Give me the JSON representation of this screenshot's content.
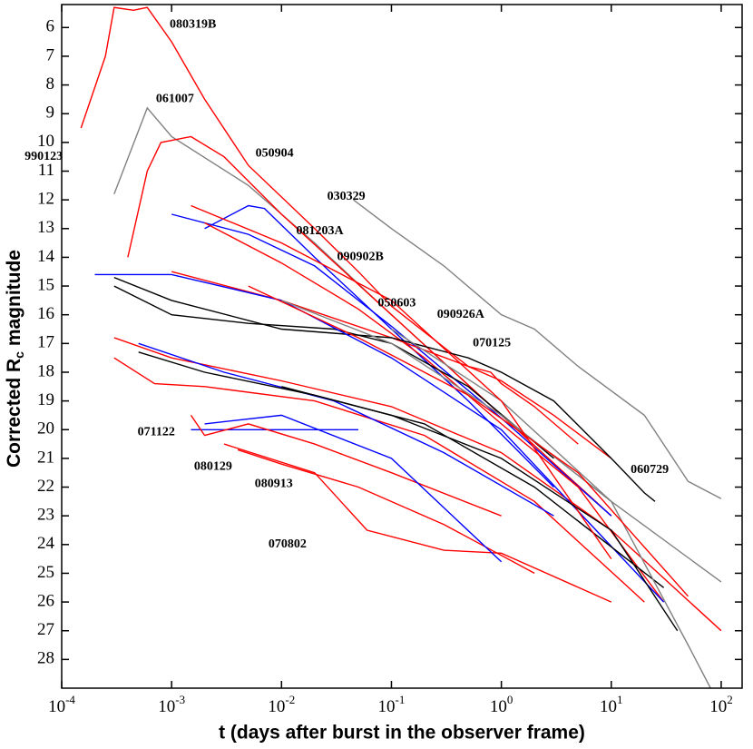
{
  "chart_data": {
    "type": "line",
    "xlabel": "t (days after burst in the observer frame)",
    "ylabel": [
      "Corrected R",
      "c",
      " magnitude"
    ],
    "xscale": "log",
    "y_inverted": true,
    "xlim": [
      0.0001,
      155
    ],
    "ylim": [
      5.2,
      29
    ],
    "xticks": [
      {
        "value": 0.0001,
        "label": "10",
        "exponent": "-4"
      },
      {
        "value": 0.001,
        "label": "10",
        "exponent": "-3"
      },
      {
        "value": 0.01,
        "label": "10",
        "exponent": "-2"
      },
      {
        "value": 0.1,
        "label": "10",
        "exponent": "-1"
      },
      {
        "value": 1,
        "label": "10",
        "exponent": "0"
      },
      {
        "value": 10,
        "label": "10",
        "exponent": "1"
      },
      {
        "value": 100,
        "label": "10",
        "exponent": "2"
      }
    ],
    "yticks": [
      6,
      7,
      8,
      9,
      10,
      11,
      12,
      13,
      14,
      15,
      16,
      17,
      18,
      19,
      20,
      21,
      22,
      23,
      24,
      25,
      26,
      27,
      28
    ],
    "series": [
      {
        "name": "080319B",
        "color": "#ff0000",
        "x": [
          0.00015,
          0.00025,
          0.0003,
          0.00045,
          0.0006,
          0.001,
          0.002,
          0.005,
          0.02,
          0.05,
          0.1,
          0.5
        ],
        "values": [
          9.5,
          7,
          5.3,
          5.4,
          5.3,
          6.5,
          8.5,
          10.8,
          13,
          14.5,
          15.7,
          17.8
        ]
      },
      {
        "name": "990123",
        "color": "#808080",
        "x": [
          0.0003,
          0.0006,
          0.001,
          0.005,
          0.02,
          0.1,
          1,
          10
        ],
        "values": [
          11.8,
          8.8,
          9.8,
          11.5,
          13.5,
          16,
          19.5,
          22.5
        ]
      },
      {
        "name": "061007",
        "color": "#ff0000",
        "x": [
          0.0004,
          0.0006,
          0.0008,
          0.0015,
          0.003,
          0.01,
          0.1,
          1,
          10
        ],
        "values": [
          14,
          11,
          10,
          9.8,
          10.5,
          12.5,
          16,
          19.5,
          23
        ]
      },
      {
        "name": "050904",
        "color": "#0000ff",
        "x": [
          0.002,
          0.005,
          0.007,
          0.02,
          0.1,
          0.5,
          3
        ],
        "values": [
          13,
          12.2,
          12.3,
          14,
          16.5,
          19,
          22
        ]
      },
      {
        "name": "030329",
        "color": "#808080",
        "x": [
          0.045,
          0.1,
          0.3,
          1,
          2,
          5,
          20,
          50,
          100
        ],
        "values": [
          12,
          13,
          14.3,
          16,
          16.5,
          17.8,
          19.5,
          21.8,
          22.4
        ]
      },
      {
        "name": "081203A",
        "color": "#0000ff",
        "x": [
          0.001,
          0.005,
          0.02,
          0.1,
          1,
          10
        ],
        "values": [
          12.5,
          13.2,
          14.3,
          16.4,
          19.6,
          23
        ]
      },
      {
        "name": "090902B",
        "color": "#ff0000",
        "x": [
          0.002,
          0.01,
          0.05,
          0.2,
          1,
          5,
          30
        ],
        "values": [
          12.8,
          14.2,
          15.8,
          17.5,
          19.8,
          22,
          26
        ]
      },
      {
        "name": "050603",
        "color": "#000000",
        "x": [
          0.0003,
          0.001,
          0.005,
          0.03,
          0.1,
          0.5,
          3
        ],
        "values": [
          15,
          16,
          16.3,
          16.5,
          17,
          18.5,
          21
        ]
      },
      {
        "name": "090926A",
        "color": "#ff0000",
        "x": [
          0.001,
          0.01,
          0.1,
          0.5,
          1,
          3,
          10
        ],
        "values": [
          14.5,
          15.5,
          16.8,
          17.8,
          18.3,
          19.5,
          21
        ]
      },
      {
        "name": "070125",
        "color": "#ff0000",
        "x": [
          0.5,
          0.8,
          1,
          2,
          5
        ],
        "values": [
          17.8,
          18,
          18.4,
          19.2,
          20.5
        ]
      },
      {
        "name": "060729",
        "color": "#000000",
        "x": [
          0.0003,
          0.001,
          0.01,
          0.1,
          0.5,
          1,
          3,
          10,
          20,
          25
        ],
        "values": [
          14.7,
          15.5,
          16.5,
          16.8,
          17.5,
          18,
          19,
          21,
          22.2,
          22.5
        ]
      },
      {
        "name": "071122",
        "color": "#0000ff",
        "x": [
          0.0015,
          0.003,
          0.01,
          0.05
        ],
        "values": [
          20,
          20,
          20,
          20
        ]
      },
      {
        "name": "080129",
        "color": "#ff0000",
        "x": [
          0.0015,
          0.002,
          0.005,
          0.02,
          0.1,
          1
        ],
        "values": [
          19.5,
          20.2,
          19.8,
          20.5,
          21.5,
          23
        ]
      },
      {
        "name": "080913",
        "color": "#ff0000",
        "x": [
          0.004,
          0.01,
          0.05,
          0.3,
          2
        ],
        "values": [
          20.7,
          21.2,
          22,
          23.3,
          25
        ]
      },
      {
        "name": "070802",
        "color": "#ff0000",
        "x": [
          0.003,
          0.02,
          0.06,
          0.3,
          1,
          10
        ],
        "values": [
          20.5,
          21.5,
          23.5,
          24.2,
          24.3,
          26
        ]
      },
      {
        "color": "#ff0000",
        "x": [
          0.0003,
          0.001,
          0.01,
          0.1,
          1,
          10,
          100
        ],
        "values": [
          16.8,
          17.5,
          18.3,
          19.2,
          20.8,
          23.5,
          27
        ]
      },
      {
        "color": "#ff0000",
        "x": [
          0.0003,
          0.0007,
          0.002,
          0.02,
          0.2,
          2,
          20
        ],
        "values": [
          17.5,
          18.4,
          18.5,
          19,
          20.2,
          22.5,
          26
        ]
      },
      {
        "color": "#0000ff",
        "x": [
          0.0002,
          0.001,
          0.01,
          0.1,
          1,
          30
        ],
        "values": [
          14.6,
          14.6,
          15.5,
          17.5,
          20,
          26
        ]
      },
      {
        "color": "#0000ff",
        "x": [
          0.0005,
          0.003,
          0.03,
          0.3,
          3
        ],
        "values": [
          17,
          18,
          19,
          20.8,
          23
        ]
      },
      {
        "color": "#0000ff",
        "x": [
          0.002,
          0.01,
          0.1,
          1
        ],
        "values": [
          19.8,
          19.5,
          21,
          24.6
        ]
      },
      {
        "color": "#000000",
        "x": [
          0.0005,
          0.002,
          0.02,
          0.2,
          2,
          30
        ],
        "values": [
          17.3,
          18,
          18.8,
          19.8,
          22,
          25.5
        ]
      },
      {
        "color": "#808080",
        "x": [
          0.01,
          0.1,
          1,
          10,
          100
        ],
        "values": [
          15.5,
          17,
          19.5,
          22.5,
          25.3
        ]
      },
      {
        "color": "#808080",
        "x": [
          0.1,
          1,
          10,
          50,
          80
        ],
        "values": [
          16.5,
          19,
          22.5,
          27.5,
          29
        ]
      },
      {
        "color": "#ff0000",
        "x": [
          0.0015,
          0.01,
          0.1,
          1,
          10
        ],
        "values": [
          12.2,
          13.5,
          15.5,
          19,
          24.5
        ]
      },
      {
        "color": "#ff0000",
        "x": [
          0.005,
          0.05,
          0.5,
          5,
          50
        ],
        "values": [
          15,
          16.8,
          18.8,
          21.5,
          25.8
        ]
      },
      {
        "color": "#000000",
        "x": [
          0.01,
          0.1,
          1,
          10,
          40
        ],
        "values": [
          18.5,
          19.5,
          21,
          23.5,
          27
        ]
      }
    ],
    "annotations": [
      {
        "text": "080319B",
        "x": 0.00096,
        "y": 5.9
      },
      {
        "text": "990123",
        "x": 4.6e-05,
        "y": 10.5
      },
      {
        "text": "061007",
        "x": 0.00072,
        "y": 8.5
      },
      {
        "text": "050904",
        "x": 0.0058,
        "y": 10.4
      },
      {
        "text": "030329",
        "x": 0.026,
        "y": 11.9
      },
      {
        "text": "081203A",
        "x": 0.0136,
        "y": 13.1
      },
      {
        "text": "090902B",
        "x": 0.032,
        "y": 14
      },
      {
        "text": "050603",
        "x": 0.075,
        "y": 15.6
      },
      {
        "text": "090926A",
        "x": 0.26,
        "y": 16
      },
      {
        "text": "070125",
        "x": 0.55,
        "y": 17
      },
      {
        "text": "060729",
        "x": 15,
        "y": 21.4
      },
      {
        "text": "071122",
        "x": 0.00049,
        "y": 20.1
      },
      {
        "text": "080129",
        "x": 0.0016,
        "y": 21.3
      },
      {
        "text": "080913",
        "x": 0.0057,
        "y": 21.9
      },
      {
        "text": "070802",
        "x": 0.0076,
        "y": 24
      }
    ]
  }
}
